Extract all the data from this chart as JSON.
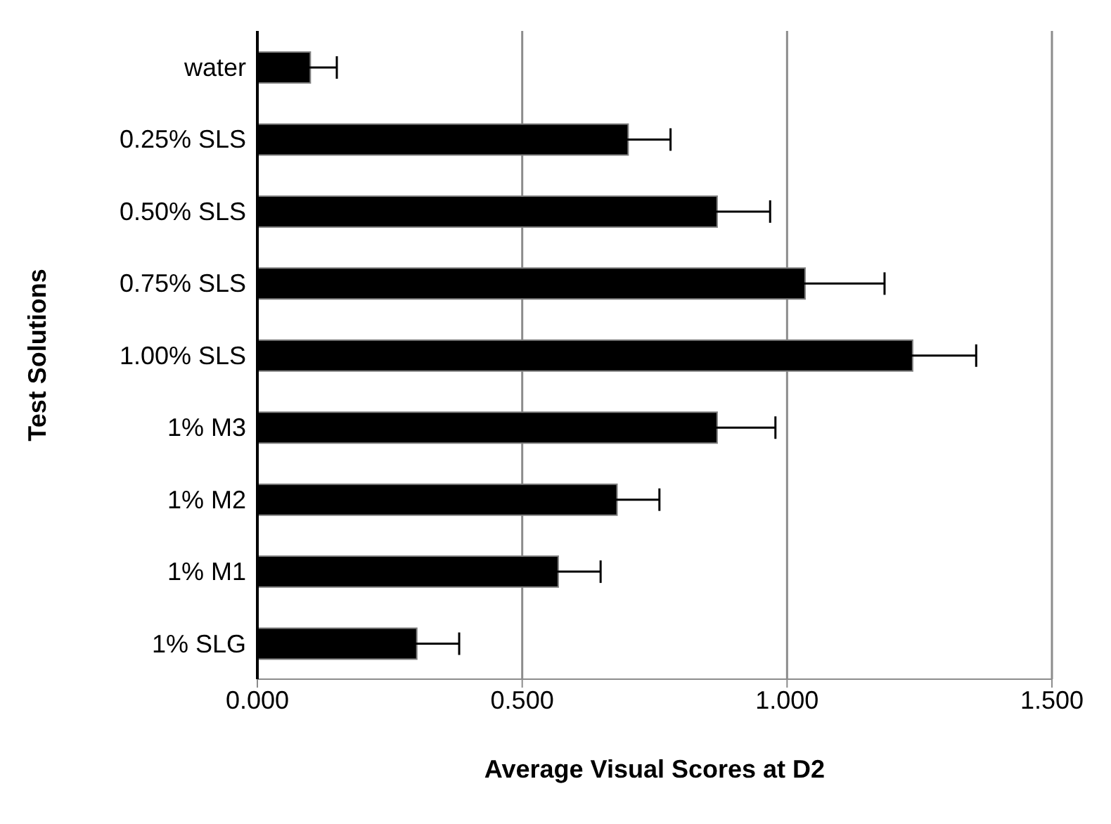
{
  "chart_data": {
    "type": "bar",
    "orientation": "horizontal",
    "xlabel": "Average Visual Scores at D2",
    "ylabel": "Test Solutions",
    "categories": [
      "water",
      "0.25% SLS",
      "0.50% SLS",
      "0.75% SLS",
      "1.00% SLS",
      "1% M3",
      "1% M2",
      "1% M1",
      "1% SLG"
    ],
    "values": [
      0.1,
      0.7,
      0.868,
      1.034,
      1.237,
      0.868,
      0.679,
      0.568,
      0.301
    ],
    "errors": [
      0.05,
      0.08,
      0.1,
      0.15,
      0.12,
      0.11,
      0.08,
      0.08,
      0.08
    ],
    "color": "#000000",
    "xlim": [
      0,
      1.5
    ],
    "xticks": [
      {
        "value": 0,
        "label": "0.000"
      },
      {
        "value": 0.5,
        "label": "0.500"
      },
      {
        "value": 1,
        "label": "1.000"
      },
      {
        "value": 1.5,
        "label": "1.500"
      }
    ],
    "grid": "x",
    "legend": false
  }
}
